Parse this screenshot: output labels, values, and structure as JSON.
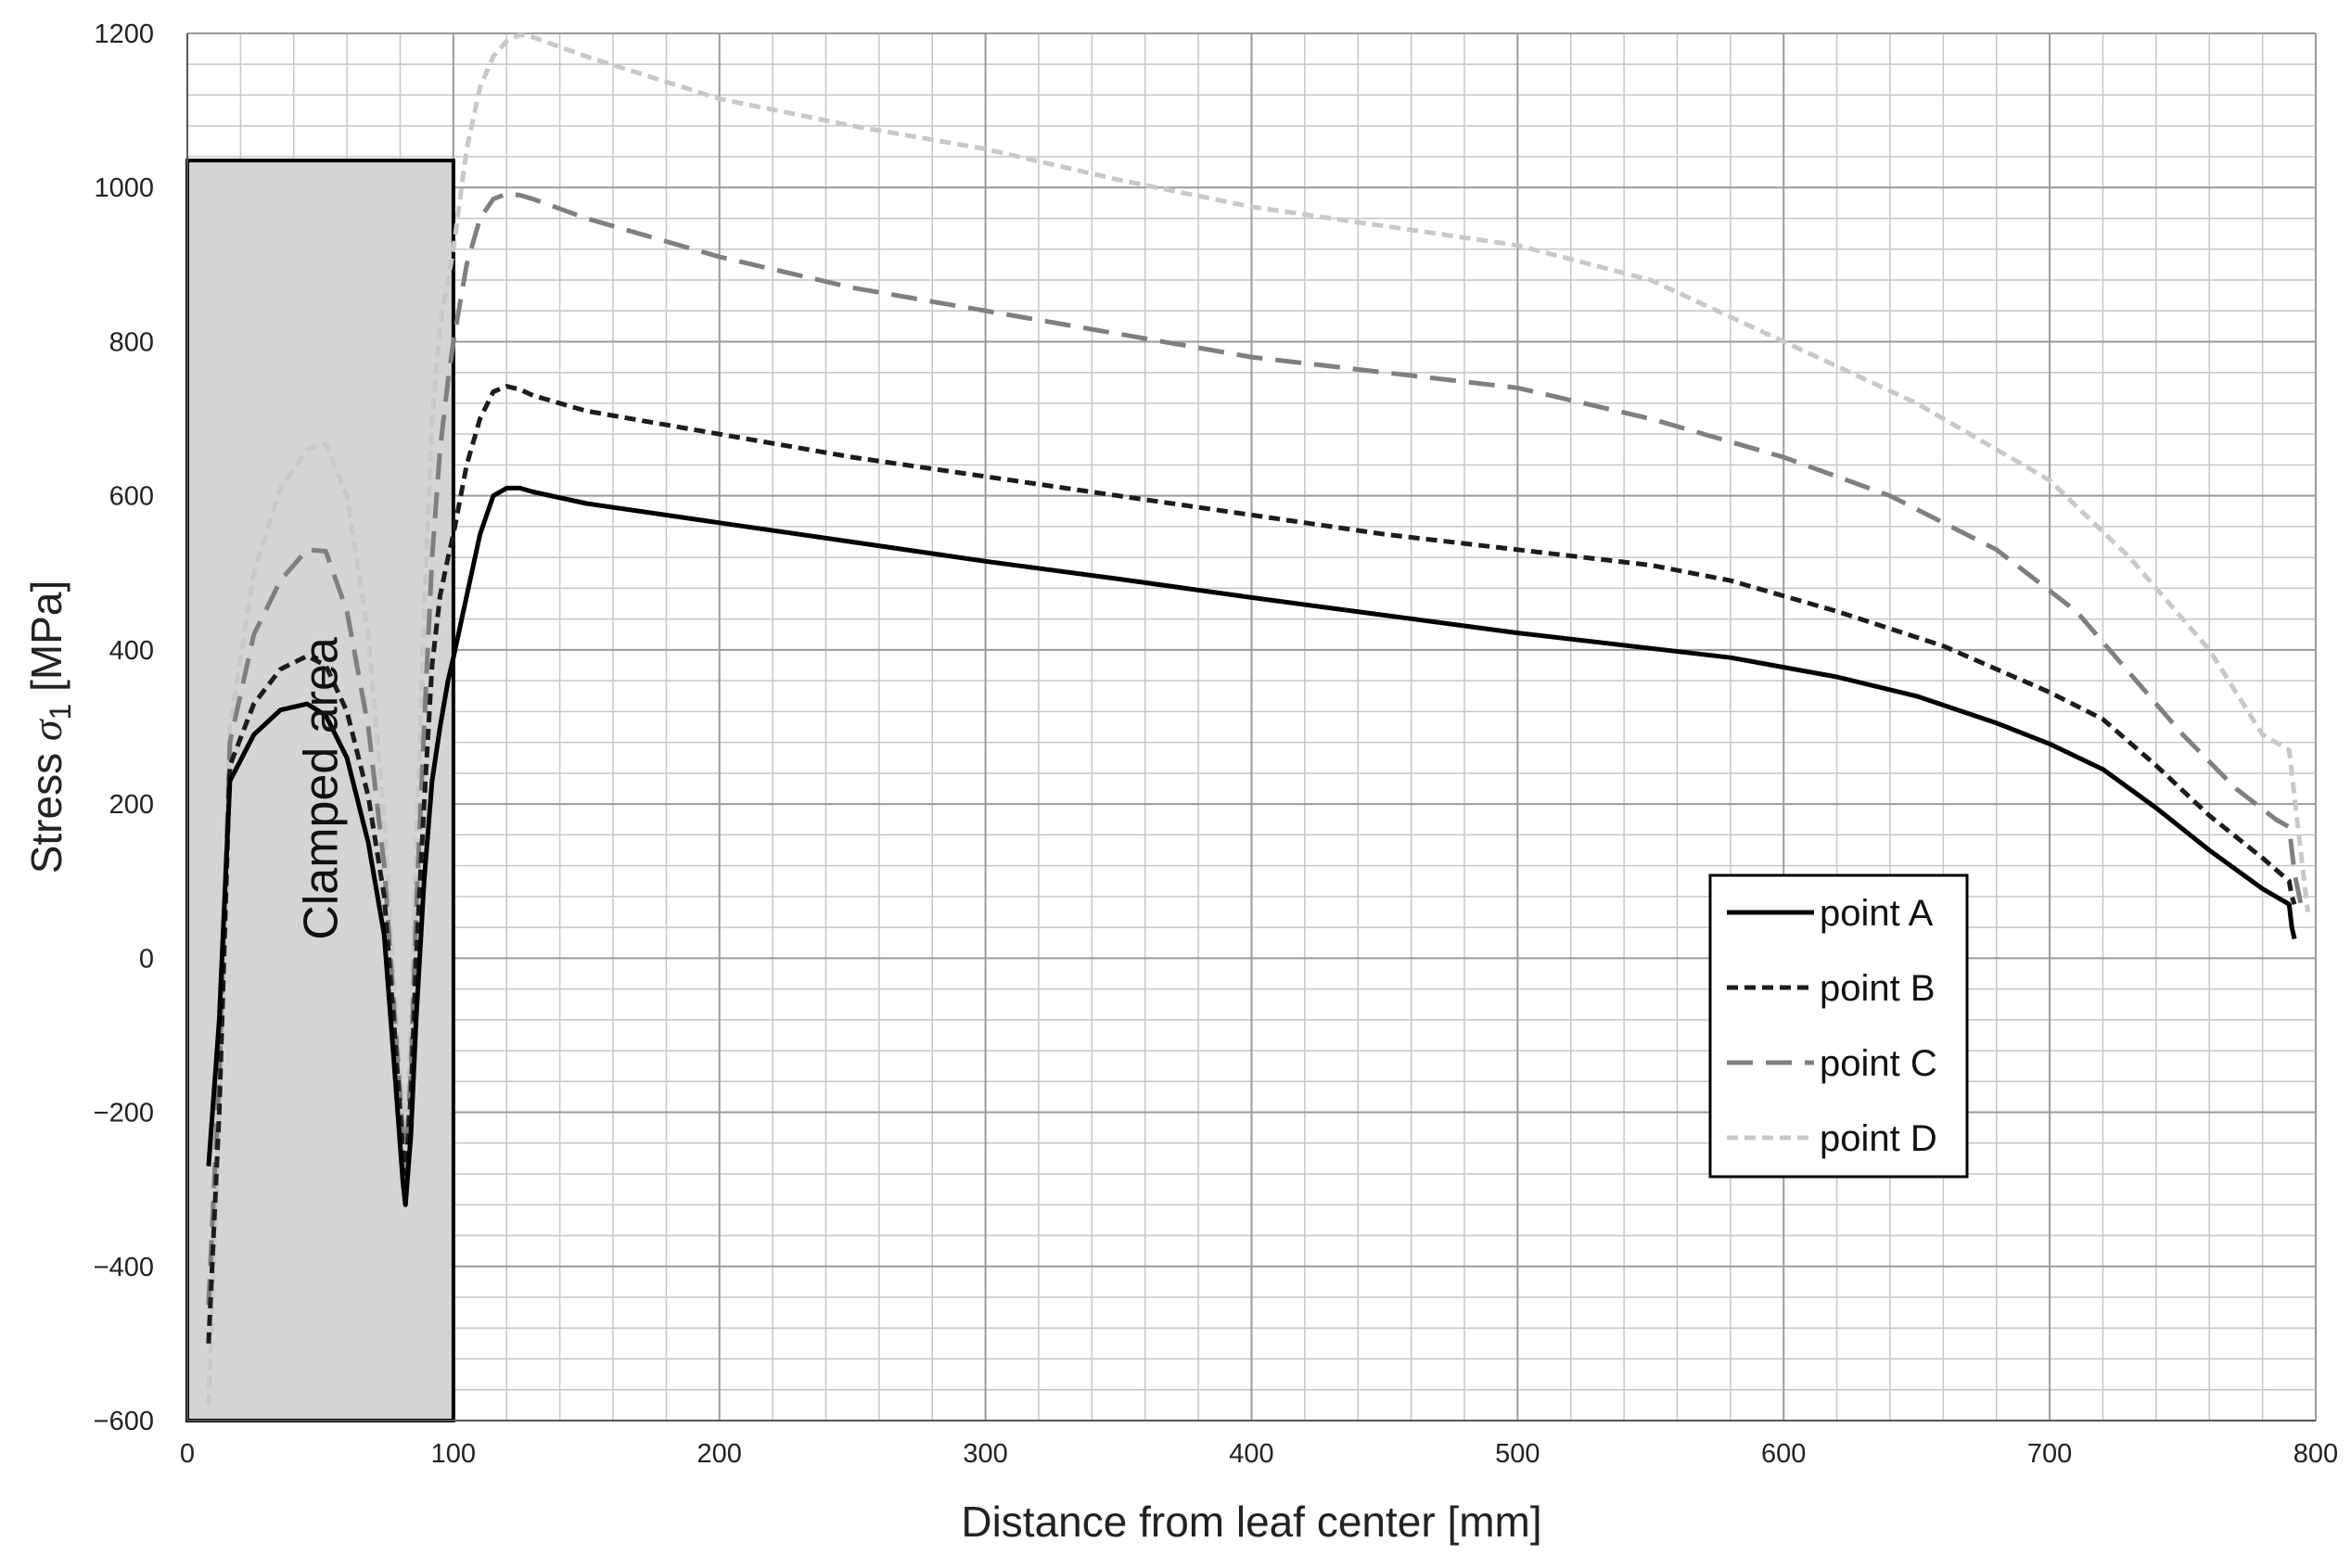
{
  "chart_data": {
    "type": "line",
    "xlabel": "Distance from leaf center [mm]",
    "ylabel_main": "Stress ",
    "ylabel_symbol": "σ",
    "ylabel_sub": "1",
    "ylabel_unit": " [MPa]",
    "xlim": [
      0,
      800
    ],
    "ylim": [
      -600,
      1200
    ],
    "x_ticks": [
      "0",
      "100",
      "200",
      "300",
      "400",
      "500",
      "600",
      "700",
      "800"
    ],
    "y_ticks": [
      "−600",
      "−400",
      "−200",
      "0",
      "200",
      "400",
      "600",
      "800",
      "1000",
      "1200"
    ],
    "grid": true,
    "legend_position": "lower-right",
    "annotation": {
      "label": "Clamped area",
      "x_range": [
        0,
        100
      ],
      "y_range": [
        -600,
        1035
      ],
      "fill": "#d4d4d4"
    },
    "series": [
      {
        "name": "point A",
        "color": "#000000",
        "dash": "solid",
        "x": [
          8,
          12,
          16,
          25,
          35,
          45,
          52,
          60,
          68,
          74,
          78,
          81,
          82,
          84,
          86,
          89,
          92,
          95,
          98,
          100,
          105,
          110,
          115,
          120,
          125,
          130,
          150,
          200,
          250,
          300,
          350,
          400,
          450,
          500,
          550,
          580,
          620,
          650,
          680,
          700,
          720,
          740,
          760,
          780,
          790,
          791,
          792
        ],
        "y": [
          -270,
          -80,
          230,
          290,
          322,
          330,
          315,
          260,
          150,
          30,
          -150,
          -290,
          -320,
          -230,
          -80,
          100,
          230,
          300,
          360,
          390,
          470,
          550,
          600,
          610,
          610,
          605,
          590,
          565,
          540,
          515,
          492,
          468,
          445,
          422,
          402,
          390,
          365,
          340,
          305,
          278,
          245,
          195,
          140,
          90,
          70,
          40,
          25
        ]
      },
      {
        "name": "point B",
        "color": "#1c1c1c",
        "dash": "12,7",
        "x": [
          8,
          12,
          16,
          25,
          35,
          45,
          52,
          60,
          68,
          74,
          78,
          81,
          82,
          84,
          86,
          89,
          92,
          95,
          98,
          100,
          105,
          110,
          115,
          120,
          125,
          130,
          150,
          200,
          250,
          300,
          350,
          400,
          450,
          500,
          550,
          580,
          620,
          660,
          700,
          720,
          740,
          760,
          780,
          790,
          791,
          792
        ],
        "y": [
          -500,
          -200,
          250,
          330,
          375,
          392,
          380,
          320,
          210,
          80,
          -100,
          -250,
          -280,
          -180,
          0,
          200,
          380,
          470,
          520,
          550,
          640,
          700,
          735,
          742,
          738,
          730,
          710,
          680,
          650,
          625,
          600,
          575,
          550,
          530,
          510,
          490,
          450,
          405,
          345,
          310,
          250,
          185,
          130,
          100,
          80,
          70
        ]
      },
      {
        "name": "point C",
        "color": "#7f7f7f",
        "dash": "28,14",
        "x": [
          8,
          12,
          16,
          25,
          35,
          45,
          52,
          60,
          68,
          74,
          78,
          81,
          82,
          84,
          86,
          89,
          92,
          95,
          98,
          100,
          105,
          110,
          115,
          120,
          125,
          130,
          150,
          200,
          250,
          300,
          350,
          400,
          450,
          500,
          550,
          600,
          640,
          680,
          710,
          730,
          750,
          770,
          785,
          790,
          792,
          795
        ],
        "y": [
          -450,
          -150,
          280,
          420,
          490,
          530,
          528,
          450,
          300,
          120,
          -80,
          -230,
          -270,
          -150,
          60,
          300,
          520,
          660,
          750,
          800,
          900,
          960,
          985,
          992,
          990,
          985,
          960,
          910,
          870,
          840,
          810,
          780,
          760,
          740,
          700,
          650,
          600,
          530,
          450,
          370,
          290,
          220,
          180,
          170,
          110,
          60
        ]
      },
      {
        "name": "point D",
        "color": "#c8c8c8",
        "dash": "12,7",
        "x": [
          8,
          12,
          16,
          25,
          35,
          45,
          52,
          60,
          68,
          74,
          78,
          81,
          82,
          84,
          86,
          89,
          92,
          95,
          98,
          100,
          105,
          110,
          115,
          120,
          125,
          130,
          150,
          200,
          250,
          300,
          350,
          400,
          450,
          500,
          550,
          600,
          650,
          700,
          730,
          760,
          780,
          790,
          793,
          797
        ],
        "y": [
          -580,
          -200,
          300,
          500,
          610,
          660,
          668,
          600,
          420,
          180,
          -50,
          -200,
          -240,
          -100,
          150,
          450,
          700,
          820,
          880,
          920,
          1050,
          1130,
          1170,
          1190,
          1198,
          1195,
          1170,
          1115,
          1080,
          1050,
          1010,
          975,
          950,
          925,
          880,
          800,
          720,
          620,
          520,
          400,
          290,
          270,
          180,
          60
        ]
      }
    ]
  }
}
